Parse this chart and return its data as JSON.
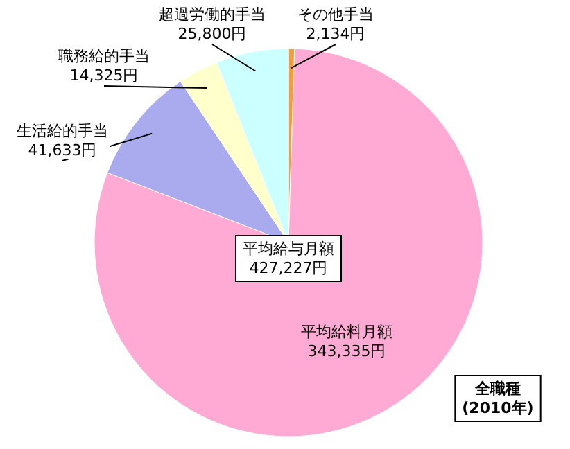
{
  "chart_data": {
    "type": "pie",
    "categories": [
      "その他手当",
      "平均給料月額",
      "生活給的手当",
      "職務給的手当",
      "超過労働的手当"
    ],
    "values": [
      2134,
      343335,
      41633,
      14325,
      25800
    ],
    "value_labels": [
      "2,134円",
      "343,335円",
      "41,633円",
      "14,325円",
      "25,800円"
    ],
    "colors": [
      "#ff9933",
      "#ffaad4",
      "#aaaaee",
      "#ffffcc",
      "#ccffff"
    ],
    "annotations": [
      "平均給与月額\n427,227円",
      "全職種\n(2010年)"
    ]
  }
}
